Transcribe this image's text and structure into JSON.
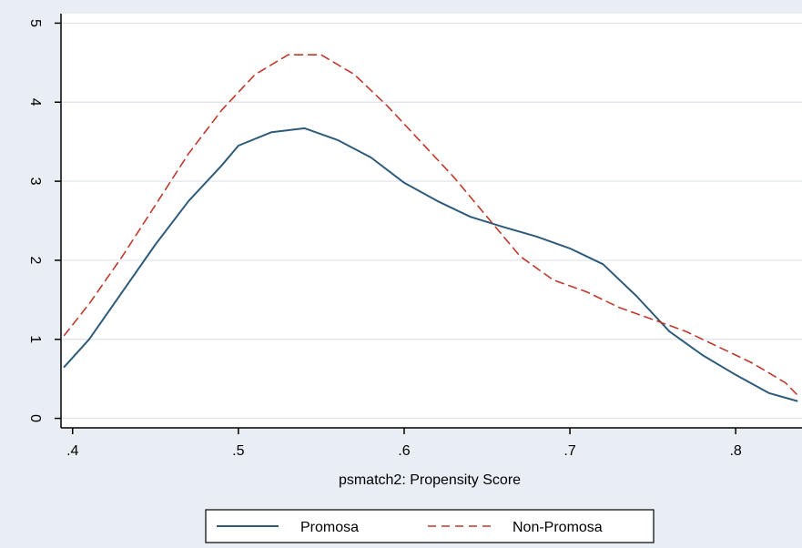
{
  "chart_data": {
    "type": "line",
    "xlabel": "psmatch2: Propensity Score",
    "ylabel": "",
    "xlim": [
      0.393,
      0.84
    ],
    "ylim": [
      -0.12,
      5.12
    ],
    "x_ticks": [
      {
        "value": 0.4,
        "label": ".4"
      },
      {
        "value": 0.5,
        "label": ".5"
      },
      {
        "value": 0.6,
        "label": ".6"
      },
      {
        "value": 0.7,
        "label": ".7"
      },
      {
        "value": 0.8,
        "label": ".8"
      }
    ],
    "y_ticks": [
      {
        "value": 0,
        "label": "0"
      },
      {
        "value": 1,
        "label": "1"
      },
      {
        "value": 2,
        "label": "2"
      },
      {
        "value": 3,
        "label": "3"
      },
      {
        "value": 4,
        "label": "4"
      },
      {
        "value": 5,
        "label": "5"
      }
    ],
    "grid": true,
    "legend_position": "bottom",
    "series": [
      {
        "name": "Promosa",
        "color": "#2e5b7a",
        "style": "solid",
        "x": [
          0.395,
          0.41,
          0.43,
          0.45,
          0.47,
          0.49,
          0.5,
          0.52,
          0.54,
          0.56,
          0.58,
          0.6,
          0.62,
          0.64,
          0.66,
          0.68,
          0.7,
          0.72,
          0.74,
          0.76,
          0.78,
          0.8,
          0.82,
          0.837
        ],
        "y": [
          0.65,
          1.0,
          1.6,
          2.2,
          2.75,
          3.2,
          3.45,
          3.62,
          3.67,
          3.52,
          3.3,
          2.98,
          2.75,
          2.55,
          2.42,
          2.3,
          2.15,
          1.95,
          1.55,
          1.1,
          0.8,
          0.55,
          0.32,
          0.22
        ]
      },
      {
        "name": "Non-Promosa",
        "color": "#c0392b",
        "style": "dashed",
        "x": [
          0.395,
          0.41,
          0.43,
          0.45,
          0.47,
          0.49,
          0.51,
          0.53,
          0.55,
          0.57,
          0.59,
          0.61,
          0.63,
          0.65,
          0.67,
          0.69,
          0.71,
          0.73,
          0.75,
          0.77,
          0.79,
          0.81,
          0.83,
          0.837
        ],
        "y": [
          1.05,
          1.45,
          2.05,
          2.7,
          3.35,
          3.9,
          4.35,
          4.6,
          4.6,
          4.35,
          3.95,
          3.5,
          3.05,
          2.55,
          2.05,
          1.75,
          1.6,
          1.4,
          1.25,
          1.1,
          0.9,
          0.7,
          0.45,
          0.3
        ]
      }
    ]
  }
}
